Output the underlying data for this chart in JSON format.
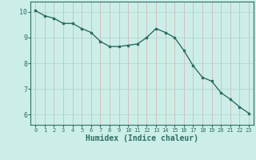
{
  "x": [
    0,
    1,
    2,
    3,
    4,
    5,
    6,
    7,
    8,
    9,
    10,
    11,
    12,
    13,
    14,
    15,
    16,
    17,
    18,
    19,
    20,
    21,
    22,
    23
  ],
  "y": [
    10.05,
    9.85,
    9.75,
    9.55,
    9.55,
    9.35,
    9.2,
    8.85,
    8.65,
    8.65,
    8.7,
    8.75,
    9.0,
    9.35,
    9.2,
    9.0,
    8.5,
    7.9,
    7.45,
    7.3,
    6.85,
    6.6,
    6.3,
    6.05
  ],
  "xlabel": "Humidex (Indice chaleur)",
  "ylim": [
    5.6,
    10.4
  ],
  "xlim": [
    -0.5,
    23.5
  ],
  "bg_color": "#cceee8",
  "line_color": "#2d6e63",
  "grid_h_color": "#b0d8d0",
  "grid_v_color": "#d4b8b8",
  "yticks": [
    6,
    7,
    8,
    9,
    10
  ],
  "xticks": [
    0,
    1,
    2,
    3,
    4,
    5,
    6,
    7,
    8,
    9,
    10,
    11,
    12,
    13,
    14,
    15,
    16,
    17,
    18,
    19,
    20,
    21,
    22,
    23
  ],
  "xlabel_fontsize": 7,
  "ytick_fontsize": 6,
  "xtick_fontsize": 5
}
